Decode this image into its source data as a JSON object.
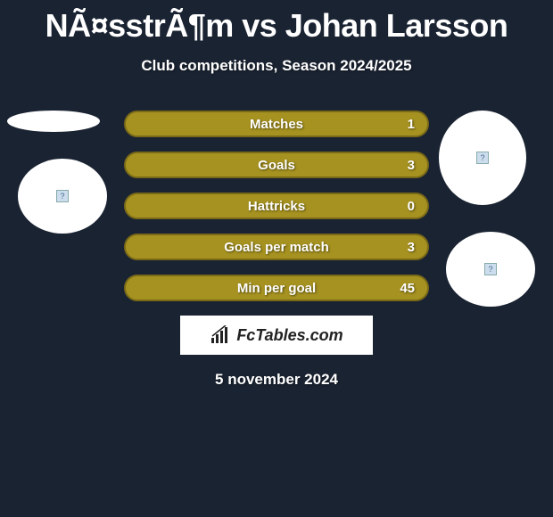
{
  "title": "NÃ¤sstrÃ¶m vs Johan Larsson",
  "subtitle": "Club competitions, Season 2024/2025",
  "date": "5 november 2024",
  "logo_text": "FcTables.com",
  "colors": {
    "background": "#1a2332",
    "bar_fill": "#a69220",
    "bar_border": "#7a6a18",
    "text": "#ffffff"
  },
  "stats": [
    {
      "label": "Matches",
      "left_value": "",
      "right_value": "1",
      "left_pct": 0,
      "right_pct": 100
    },
    {
      "label": "Goals",
      "left_value": "",
      "right_value": "3",
      "left_pct": 0,
      "right_pct": 100
    },
    {
      "label": "Hattricks",
      "left_value": "",
      "right_value": "0",
      "left_pct": 0,
      "right_pct": 100
    },
    {
      "label": "Goals per match",
      "left_value": "",
      "right_value": "3",
      "left_pct": 0,
      "right_pct": 100
    },
    {
      "label": "Min per goal",
      "left_value": "",
      "right_value": "45",
      "left_pct": 0,
      "right_pct": 100
    }
  ],
  "avatars": [
    {
      "name": "player1-avatar-top",
      "has_placeholder": false
    },
    {
      "name": "player1-avatar-bottom",
      "has_placeholder": true
    },
    {
      "name": "player2-avatar-top",
      "has_placeholder": true
    },
    {
      "name": "player2-avatar-bottom",
      "has_placeholder": true
    }
  ]
}
